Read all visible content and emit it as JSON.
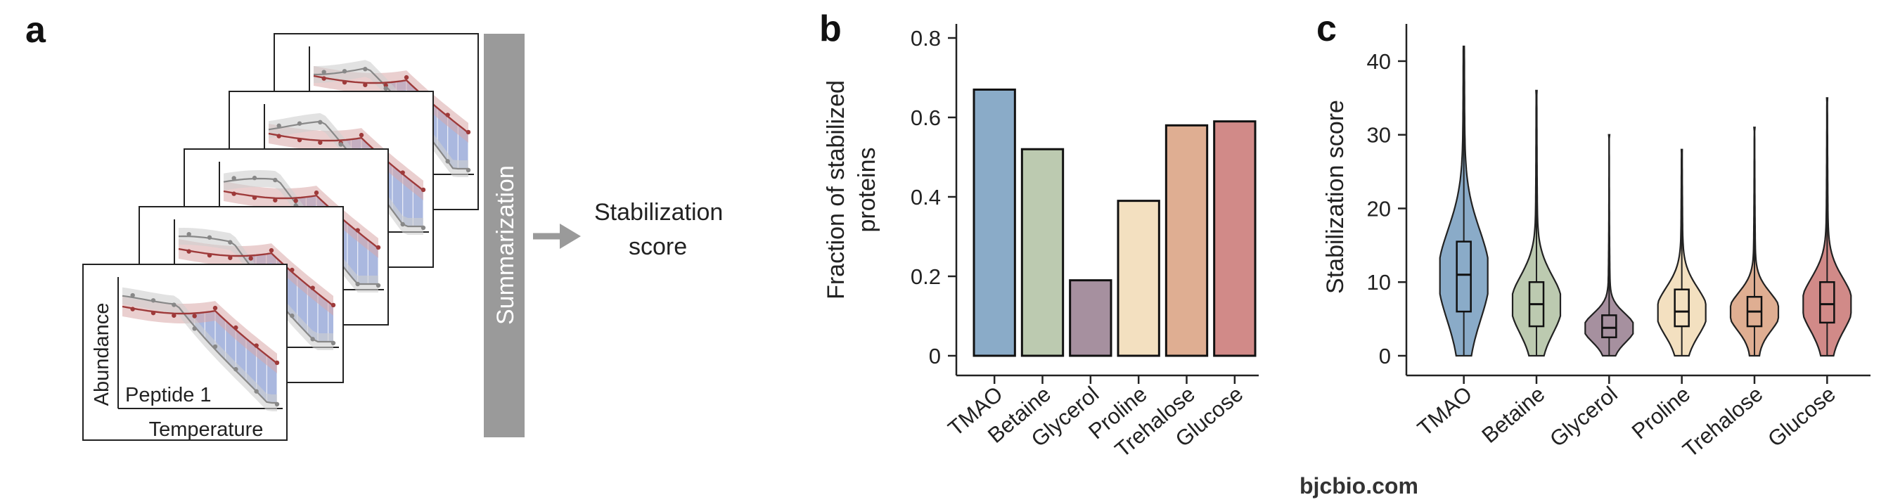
{
  "panels": {
    "a": "a",
    "b": "b",
    "c": "c"
  },
  "schematic": {
    "x_label": "Temperature",
    "y_label": "Abundance",
    "peptide_label": "Peptide 1",
    "bar_label": "Summarization",
    "output_label_line1": "Stabilization",
    "output_label_line2": "score"
  },
  "colors": {
    "TMAO": "#8aabc8",
    "Betaine": "#bccab0",
    "Glycerol": "#a6909f",
    "Proline": "#f3e0c0",
    "Trehalose": "#dfae92",
    "Glucose": "#d18a88",
    "summary_bar": "#9a9a9a",
    "curve_red": "#9e3a3a",
    "curve_gray": "#888888",
    "fill_blue": "#8ea0d4"
  },
  "chart_data": [
    {
      "type": "bar",
      "panel": "b",
      "categories": [
        "TMAO",
        "Betaine",
        "Glycerol",
        "Proline",
        "Trehalose",
        "Glucose"
      ],
      "values": [
        0.67,
        0.52,
        0.19,
        0.39,
        0.58,
        0.59
      ],
      "ylabel_line1": "Fraction of stabilized",
      "ylabel_line2": "proteins",
      "ylim": [
        0,
        0.8
      ],
      "yticks": [
        0,
        0.2,
        0.4,
        0.6,
        0.8
      ],
      "ytick_labels": [
        "0",
        "0.2",
        "0.4",
        "0.6",
        "0.8"
      ],
      "grid": false
    },
    {
      "type": "violin",
      "panel": "c",
      "categories": [
        "TMAO",
        "Betaine",
        "Glycerol",
        "Proline",
        "Trehalose",
        "Glucose"
      ],
      "ylabel": "Stabilization score",
      "ylim": [
        0,
        42
      ],
      "yticks": [
        0,
        10,
        20,
        30,
        40
      ],
      "ytick_labels": [
        "0",
        "10",
        "20",
        "30",
        "40"
      ],
      "series": [
        {
          "category": "TMAO",
          "min": 0,
          "q1": 6,
          "median": 11,
          "q3": 15.5,
          "max": 42
        },
        {
          "category": "Betaine",
          "min": 0,
          "q1": 4,
          "median": 7,
          "q3": 10,
          "max": 36
        },
        {
          "category": "Glycerol",
          "min": 0,
          "q1": 2.5,
          "median": 3.8,
          "q3": 5.5,
          "max": 30
        },
        {
          "category": "Proline",
          "min": 0,
          "q1": 4,
          "median": 6,
          "q3": 9,
          "max": 28
        },
        {
          "category": "Trehalose",
          "min": 0,
          "q1": 4,
          "median": 6,
          "q3": 8,
          "max": 31
        },
        {
          "category": "Glucose",
          "min": 0,
          "q1": 4.5,
          "median": 7,
          "q3": 10,
          "max": 35
        }
      ],
      "grid": false
    }
  ],
  "watermark": "bjcbio.com"
}
